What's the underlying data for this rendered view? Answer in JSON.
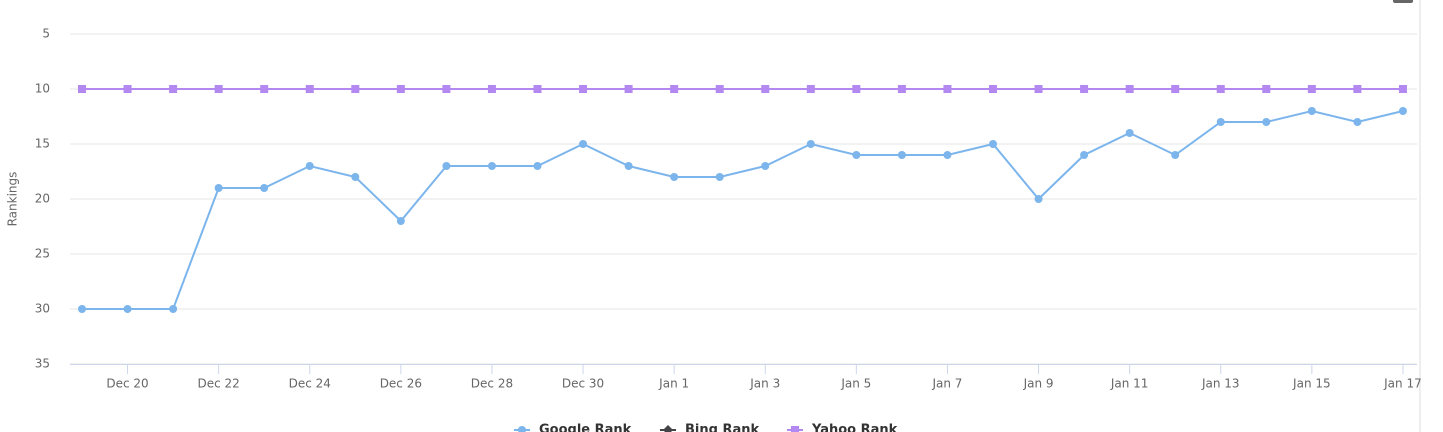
{
  "chart_data": {
    "type": "line",
    "y_label": "Rankings",
    "categories": [
      null,
      "Dec 20",
      null,
      "Dec 22",
      null,
      "Dec 24",
      null,
      "Dec 26",
      null,
      "Dec 28",
      null,
      "Dec 30",
      null,
      "Jan 1",
      null,
      "Jan 3",
      null,
      "Jan 5",
      null,
      "Jan 7",
      null,
      "Jan 9",
      null,
      "Jan 11",
      null,
      "Jan 13",
      null,
      "Jan 15",
      null,
      "Jan 17"
    ],
    "series": [
      {
        "name": "Google Rank",
        "color": "#7cb5ec",
        "marker": "circle",
        "values": [
          30,
          30,
          30,
          19,
          19,
          17,
          18,
          22,
          17,
          17,
          17,
          15,
          17,
          18,
          18,
          17,
          15,
          16,
          16,
          16,
          15,
          20,
          16,
          14,
          16,
          13,
          13,
          12,
          13,
          12
        ]
      },
      {
        "name": "Bing Rank",
        "color": "#434348",
        "marker": "diamond",
        "values": [
          null,
          null,
          null,
          null,
          null,
          null,
          null,
          null,
          null,
          null,
          null,
          null,
          null,
          null,
          null,
          null,
          null,
          null,
          null,
          null,
          null,
          null,
          null,
          null,
          null,
          null,
          null,
          null,
          null,
          null
        ]
      },
      {
        "name": "Yahoo Rank",
        "color": "#b388f0",
        "marker": "square",
        "values": [
          10,
          10,
          10,
          10,
          10,
          10,
          10,
          10,
          10,
          10,
          10,
          10,
          10,
          10,
          10,
          10,
          10,
          10,
          10,
          10,
          10,
          10,
          10,
          10,
          10,
          10,
          10,
          10,
          10,
          10
        ]
      }
    ],
    "ylim": [
      35,
      5
    ],
    "yticks": [
      5,
      10,
      15,
      20,
      25,
      30,
      35
    ],
    "grid": true,
    "legend": "bottom"
  }
}
